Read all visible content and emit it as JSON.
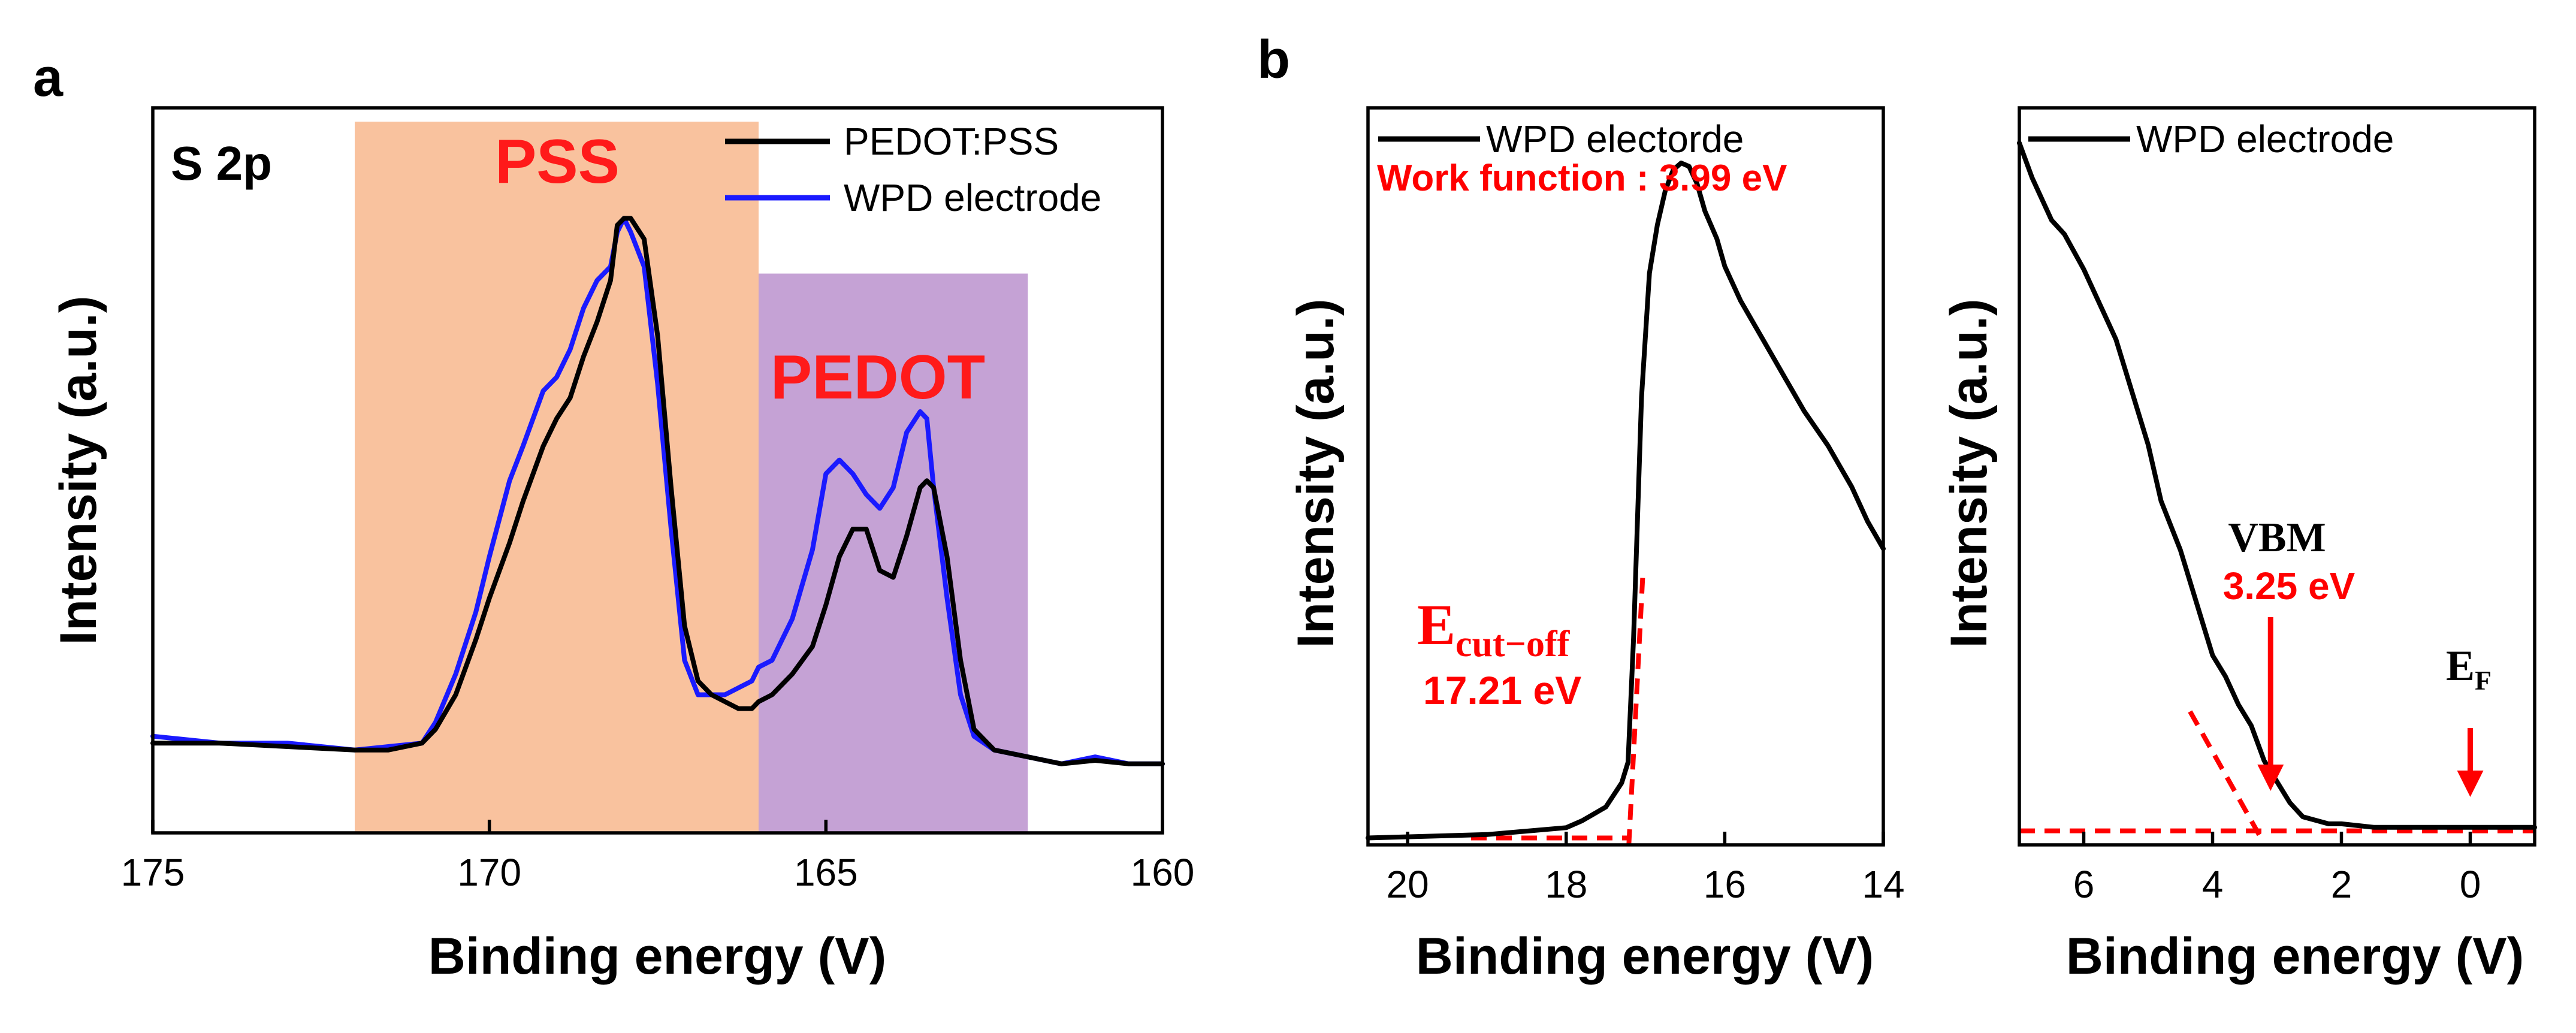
{
  "panel_a": {
    "letter": "a",
    "label": "S 2p",
    "region_pss": "PSS",
    "region_pedot": "PEDOT",
    "colors": {
      "pss_region": "#f9c29e",
      "pedot_region": "#c5a2d5",
      "series_black": "#000000",
      "series_blue": "#1a1aff",
      "region_text": "#ff1a1a"
    }
  },
  "panel_b": {
    "letter": "b",
    "left": {
      "legend": "WPD electorde",
      "work_function": "Work function : 3.99 eV",
      "cutoff_main": "E",
      "cutoff_sub": "cut−off",
      "cutoff_value": "17.21 eV"
    },
    "right": {
      "legend": "WPD electrode",
      "vbm_label": "VBM",
      "vbm_value": "3.25 eV",
      "ef_main": "E",
      "ef_sub": "F"
    }
  },
  "chart_data": [
    {
      "type": "line",
      "title": "S 2p",
      "xlabel": "Binding energy (V)",
      "ylabel": "Intensity (a.u.)",
      "xlim": [
        175,
        160
      ],
      "ylim": [
        0,
        1.05
      ],
      "xticks": [
        "175",
        "170",
        "165",
        "160"
      ],
      "shaded_regions": [
        {
          "label": "PSS",
          "from": 172,
          "to": 166,
          "ymax": 1.03
        },
        {
          "label": "PEDOT",
          "from": 166,
          "to": 162,
          "ymax": 0.81
        }
      ],
      "series": [
        {
          "name": "PEDOT:PSS",
          "color": "#000000",
          "x": [
            175,
            174,
            173,
            172,
            171.5,
            171,
            170.8,
            170.5,
            170.2,
            170,
            169.7,
            169.5,
            169.2,
            169,
            168.8,
            168.6,
            168.4,
            168.2,
            168.1,
            168,
            167.9,
            167.7,
            167.5,
            167.3,
            167.1,
            166.9,
            166.7,
            166.5,
            166.3,
            166.1,
            166,
            165.8,
            165.5,
            165.2,
            165,
            164.8,
            164.6,
            164.4,
            164.2,
            164,
            163.8,
            163.6,
            163.5,
            163.4,
            163.2,
            163,
            162.8,
            162.5,
            162,
            161.5,
            161,
            160.5,
            160
          ],
          "values": [
            0.13,
            0.13,
            0.125,
            0.12,
            0.12,
            0.13,
            0.15,
            0.2,
            0.28,
            0.34,
            0.42,
            0.48,
            0.56,
            0.6,
            0.63,
            0.69,
            0.74,
            0.8,
            0.88,
            0.89,
            0.89,
            0.86,
            0.72,
            0.5,
            0.3,
            0.22,
            0.2,
            0.19,
            0.18,
            0.18,
            0.19,
            0.2,
            0.23,
            0.27,
            0.33,
            0.4,
            0.44,
            0.44,
            0.38,
            0.37,
            0.43,
            0.5,
            0.51,
            0.5,
            0.4,
            0.25,
            0.15,
            0.12,
            0.11,
            0.1,
            0.105,
            0.1,
            0.1
          ]
        },
        {
          "name": "WPD electrode",
          "color": "#1a1aff",
          "x": [
            175,
            174,
            173,
            172,
            171.5,
            171,
            170.8,
            170.5,
            170.2,
            170,
            169.7,
            169.5,
            169.2,
            169,
            168.8,
            168.6,
            168.4,
            168.2,
            168.1,
            168,
            167.9,
            167.7,
            167.5,
            167.3,
            167.1,
            166.9,
            166.7,
            166.5,
            166.3,
            166.1,
            166,
            165.8,
            165.5,
            165.2,
            165,
            164.8,
            164.6,
            164.4,
            164.2,
            164,
            163.8,
            163.6,
            163.5,
            163.4,
            163.2,
            163,
            162.8,
            162.5,
            162,
            161.5,
            161,
            160.5,
            160
          ],
          "values": [
            0.14,
            0.13,
            0.13,
            0.12,
            0.125,
            0.13,
            0.16,
            0.23,
            0.32,
            0.4,
            0.51,
            0.56,
            0.64,
            0.66,
            0.7,
            0.76,
            0.8,
            0.82,
            0.87,
            0.89,
            0.87,
            0.82,
            0.65,
            0.44,
            0.25,
            0.2,
            0.2,
            0.2,
            0.21,
            0.22,
            0.24,
            0.25,
            0.31,
            0.41,
            0.52,
            0.54,
            0.52,
            0.49,
            0.47,
            0.5,
            0.58,
            0.61,
            0.6,
            0.5,
            0.34,
            0.2,
            0.14,
            0.12,
            0.11,
            0.1,
            0.11,
            0.1,
            0.1
          ]
        }
      ]
    },
    {
      "type": "line",
      "title": "",
      "xlabel": "Binding energy (V)",
      "ylabel": "Intensity (a.u.)",
      "xlim": [
        20.5,
        14
      ],
      "ylim": [
        0,
        1.07
      ],
      "xticks": [
        "20",
        "18",
        "16",
        "14"
      ],
      "series": [
        {
          "name": "WPD electorde",
          "color": "#000000",
          "x": [
            20.5,
            19,
            18,
            17.8,
            17.5,
            17.3,
            17.22,
            17.15,
            17.05,
            16.95,
            16.85,
            16.75,
            16.65,
            16.55,
            16.45,
            16.35,
            16.25,
            16.1,
            16,
            15.8,
            15.5,
            15.2,
            15,
            14.7,
            14.4,
            14.2,
            14
          ],
          "values": [
            0.01,
            0.015,
            0.025,
            0.035,
            0.055,
            0.09,
            0.12,
            0.3,
            0.65,
            0.83,
            0.9,
            0.95,
            0.98,
            0.99,
            0.985,
            0.96,
            0.92,
            0.88,
            0.84,
            0.79,
            0.73,
            0.67,
            0.63,
            0.58,
            0.52,
            0.47,
            0.43
          ]
        }
      ],
      "fit_lines": [
        {
          "x": [
            19.2,
            17.21
          ],
          "values": [
            0.01,
            0.01
          ]
        },
        {
          "x": [
            17.21,
            17.03
          ],
          "values": [
            0.0,
            0.4
          ]
        }
      ]
    },
    {
      "type": "line",
      "title": "",
      "xlabel": "Binding energy (V)",
      "ylabel": "Intensity (a.u.)",
      "xlim": [
        7,
        -1
      ],
      "ylim": [
        0,
        1.05
      ],
      "xticks": [
        "6",
        "4",
        "2",
        "0"
      ],
      "series": [
        {
          "name": "WPD electrode",
          "color": "#000000",
          "x": [
            7,
            6.8,
            6.5,
            6.3,
            6,
            5.7,
            5.5,
            5.3,
            5,
            4.8,
            4.5,
            4.2,
            4,
            3.8,
            3.6,
            3.4,
            3.2,
            3,
            2.8,
            2.6,
            2.4,
            2.2,
            2,
            1.5,
            1,
            0,
            -1
          ],
          "values": [
            1.0,
            0.95,
            0.89,
            0.87,
            0.82,
            0.76,
            0.72,
            0.66,
            0.57,
            0.49,
            0.42,
            0.33,
            0.27,
            0.24,
            0.2,
            0.17,
            0.12,
            0.09,
            0.06,
            0.04,
            0.035,
            0.03,
            0.03,
            0.025,
            0.025,
            0.025,
            0.025
          ]
        }
      ],
      "fit_lines": [
        {
          "x": [
            7,
            -1
          ],
          "values": [
            0.02,
            0.02
          ]
        },
        {
          "x": [
            4.35,
            3.25
          ],
          "values": [
            0.19,
            0.01
          ]
        }
      ],
      "markers": [
        {
          "label": "VBM",
          "value_label": "3.25 eV",
          "x": 3.1
        },
        {
          "label": "EF",
          "x": 0
        }
      ]
    }
  ]
}
